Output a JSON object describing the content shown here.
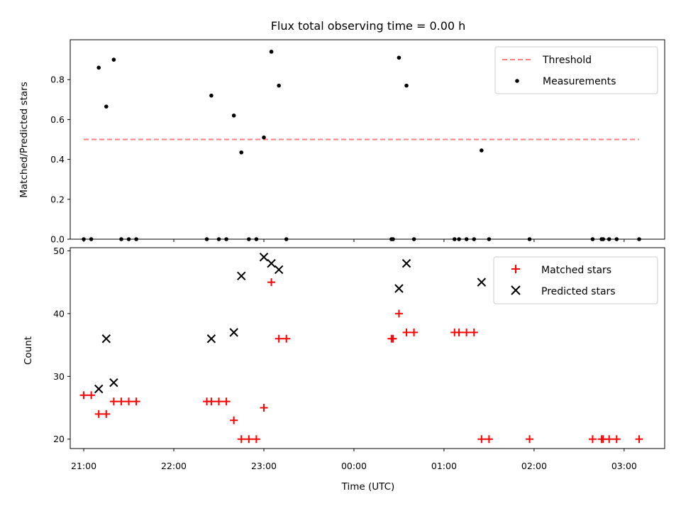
{
  "chart_data": [
    {
      "type": "scatter",
      "title": "Flux total observing time = 0.00 h",
      "xlabel": "",
      "ylabel": "Matched/Predicted stars",
      "xlim": [
        "20:51",
        "03:27"
      ],
      "ylim": [
        0,
        1.0
      ],
      "yticks": [
        0.0,
        0.2,
        0.4,
        0.6,
        0.8
      ],
      "ytick_labels": [
        "0.0",
        "0.2",
        "0.4",
        "0.6",
        "0.8"
      ],
      "xticks": [
        "21:00",
        "22:00",
        "23:00",
        "00:00",
        "01:00",
        "02:00",
        "03:00"
      ],
      "show_xtick_labels": false,
      "grid": false,
      "legend": {
        "placement": "top-right",
        "entries": [
          {
            "label": "Threshold",
            "marker": "dashed-line",
            "color": "#ff7f7f"
          },
          {
            "label": "Measurements",
            "marker": "dot",
            "color": "#000000"
          }
        ]
      },
      "series": [
        {
          "name": "Threshold",
          "kind": "line",
          "color": "#ff7f7f",
          "x": [
            "21:00",
            "03:10"
          ],
          "y": [
            0.5,
            0.5
          ]
        },
        {
          "name": "Measurements",
          "kind": "scatter",
          "color": "#000000",
          "x": [
            "21:00",
            "21:05",
            "21:10",
            "21:15",
            "21:20",
            "21:25",
            "21:30",
            "21:35",
            "22:22",
            "22:25",
            "22:30",
            "22:35",
            "22:40",
            "22:45",
            "22:50",
            "22:55",
            "23:00",
            "23:05",
            "23:10",
            "23:15",
            "00:25",
            "00:26",
            "00:30",
            "00:35",
            "00:40",
            "01:07",
            "01:10",
            "01:15",
            "01:20",
            "01:25",
            "01:30",
            "01:57",
            "02:39",
            "02:45",
            "02:46",
            "02:50",
            "02:55",
            "03:10"
          ],
          "y": [
            0,
            0,
            0.86,
            0.665,
            0.9,
            0,
            0,
            0,
            0,
            0.72,
            0,
            0,
            0.62,
            0.435,
            0,
            0,
            0.51,
            0.94,
            0.77,
            0,
            0,
            0,
            0.91,
            0.77,
            0,
            0,
            0,
            0,
            0,
            0.445,
            0,
            0,
            0,
            0,
            0,
            0,
            0,
            0
          ]
        }
      ]
    },
    {
      "type": "scatter",
      "title": "",
      "xlabel": "Time (UTC)",
      "ylabel": "Count",
      "xlim": [
        "20:51",
        "03:27"
      ],
      "ylim": [
        18.5,
        50.5
      ],
      "yticks": [
        20,
        30,
        40,
        50
      ],
      "ytick_labels": [
        "20",
        "30",
        "40",
        "50"
      ],
      "xticks": [
        "21:00",
        "22:00",
        "23:00",
        "00:00",
        "01:00",
        "02:00",
        "03:00"
      ],
      "xtick_labels": [
        "21:00",
        "22:00",
        "23:00",
        "00:00",
        "01:00",
        "02:00",
        "03:00"
      ],
      "grid": false,
      "legend": {
        "placement": "top-right",
        "entries": [
          {
            "label": "Matched stars",
            "marker": "plus",
            "color": "#ff0000"
          },
          {
            "label": "Predicted stars",
            "marker": "x",
            "color": "#000000"
          }
        ]
      },
      "series": [
        {
          "name": "Matched stars",
          "kind": "scatter",
          "marker": "plus",
          "color": "#ff0000",
          "x": [
            "21:00",
            "21:05",
            "21:10",
            "21:15",
            "21:20",
            "21:25",
            "21:30",
            "21:35",
            "22:22",
            "22:25",
            "22:30",
            "22:35",
            "22:40",
            "22:45",
            "22:50",
            "22:55",
            "23:00",
            "23:05",
            "23:10",
            "23:15",
            "00:25",
            "00:26",
            "00:30",
            "00:35",
            "00:40",
            "01:07",
            "01:10",
            "01:15",
            "01:20",
            "01:25",
            "01:30",
            "01:57",
            "02:39",
            "02:45",
            "02:46",
            "02:50",
            "02:55",
            "03:10"
          ],
          "y": [
            27,
            27,
            24,
            24,
            26,
            26,
            26,
            26,
            26,
            26,
            26,
            26,
            23,
            20,
            20,
            20,
            25,
            45,
            36,
            36,
            36,
            36,
            40,
            37,
            37,
            37,
            37,
            37,
            37,
            20,
            20,
            20,
            20,
            20,
            20,
            20,
            20,
            20
          ]
        },
        {
          "name": "Predicted stars",
          "kind": "scatter",
          "marker": "x",
          "color": "#000000",
          "x": [
            "21:10",
            "21:15",
            "21:20",
            "22:25",
            "22:40",
            "22:45",
            "23:00",
            "23:05",
            "23:10",
            "00:30",
            "00:35",
            "01:25"
          ],
          "y": [
            28,
            36,
            29,
            36,
            37,
            46,
            49,
            48,
            47,
            44,
            48,
            45
          ]
        }
      ]
    }
  ]
}
